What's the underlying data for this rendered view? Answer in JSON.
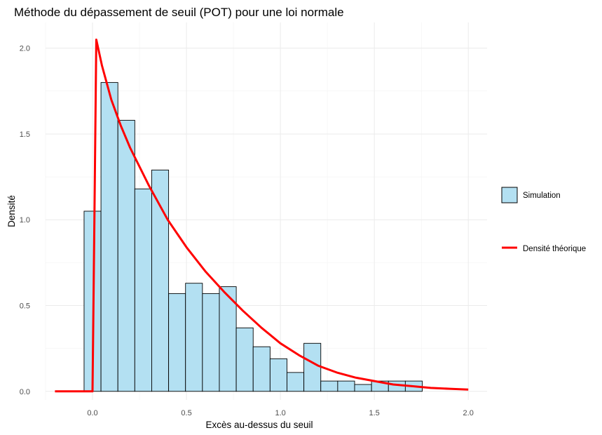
{
  "chart_data": {
    "type": "histogram",
    "title": "Méthode du dépassement de seuil (POT) pour une loi normale",
    "xlabel": "Excès au-dessus du seuil",
    "ylabel": "Densité",
    "xlim": [
      -0.25,
      2.1
    ],
    "ylim": [
      -0.05,
      2.15
    ],
    "x_ticks": [
      0.0,
      0.5,
      1.0,
      1.5,
      2.0
    ],
    "x_tick_labels": [
      "0.0",
      "0.5",
      "1.0",
      "1.5",
      "2.0"
    ],
    "y_ticks": [
      0.0,
      0.5,
      1.0,
      1.5,
      2.0
    ],
    "y_tick_labels": [
      "0.0",
      "0.5",
      "1.0",
      "1.5",
      "2.0"
    ],
    "grid": true,
    "legend_position": "right",
    "bins": {
      "start": -0.045,
      "width": 0.09,
      "values": [
        1.05,
        1.8,
        1.58,
        1.18,
        1.29,
        0.57,
        0.63,
        0.57,
        0.61,
        0.37,
        0.26,
        0.19,
        0.11,
        0.28,
        0.06,
        0.06,
        0.04,
        0.06,
        0.06,
        0.06
      ]
    },
    "series": [
      {
        "name": "Simulation",
        "kind": "histogram",
        "fill": "#b3e0f2",
        "stroke": "#000000"
      },
      {
        "name": "Densité théorique",
        "kind": "line",
        "color": "#ff0000"
      }
    ],
    "density_curve": {
      "x": [
        -0.2,
        -0.1,
        0.0,
        0.01,
        0.02,
        0.05,
        0.1,
        0.15,
        0.2,
        0.3,
        0.4,
        0.5,
        0.6,
        0.7,
        0.8,
        0.9,
        1.0,
        1.1,
        1.2,
        1.3,
        1.4,
        1.5,
        1.6,
        1.7,
        1.8,
        1.9,
        2.0
      ],
      "y": [
        0.0,
        0.0,
        0.0,
        1.0,
        2.05,
        1.9,
        1.7,
        1.55,
        1.42,
        1.2,
        1.0,
        0.84,
        0.7,
        0.58,
        0.47,
        0.37,
        0.28,
        0.21,
        0.15,
        0.11,
        0.08,
        0.06,
        0.04,
        0.03,
        0.02,
        0.015,
        0.01
      ]
    }
  }
}
